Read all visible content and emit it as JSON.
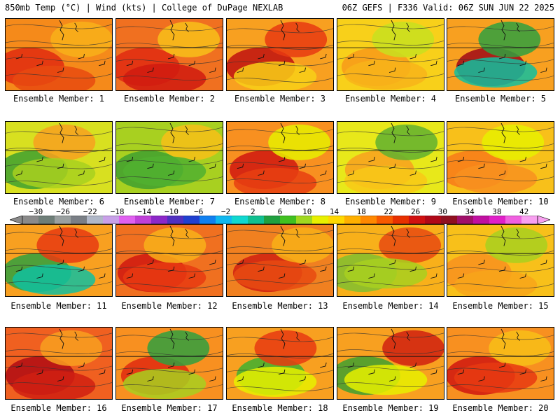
{
  "header": {
    "left": "850mb Temp (°C) | Wind (kts) | College of DuPage NEXLAB",
    "right": "06Z GEFS | F336 Valid: 06Z SUN JUN 22 2025"
  },
  "colorbar": {
    "tick_labels": [
      "−30",
      "−26",
      "−22",
      "−18",
      "−14",
      "−10",
      "−6",
      "−2",
      "2",
      "6",
      "10",
      "14",
      "18",
      "22",
      "26",
      "30",
      "34",
      "38",
      "42"
    ],
    "colors": [
      "#8a8a8a",
      "#6e7e78",
      "#9aa0a0",
      "#7a7f86",
      "#b0b8c8",
      "#c8a0e8",
      "#e060f0",
      "#c040d8",
      "#8c28c8",
      "#5030c0",
      "#2040d0",
      "#1080f0",
      "#10b8f0",
      "#10d8d0",
      "#10c090",
      "#20a040",
      "#40c020",
      "#a0d820",
      "#e8f000",
      "#ffd800",
      "#ffb000",
      "#ff8800",
      "#f85a00",
      "#e83000",
      "#d01010",
      "#b00818",
      "#901020",
      "#a0106a",
      "#c010a0",
      "#e020c8",
      "#f060e0",
      "#f8a0f0"
    ]
  },
  "members": [
    {
      "label": "Ensemble Member: 1",
      "base": "#f58a1a",
      "accents": [
        "#e02a10",
        "#f8b01a",
        "#e84a10"
      ]
    },
    {
      "label": "Ensemble Member: 2",
      "base": "#f07020",
      "accents": [
        "#e02a12",
        "#f8c01a",
        "#d01a10"
      ]
    },
    {
      "label": "Ensemble Member: 3",
      "base": "#f8a020",
      "accents": [
        "#c01010",
        "#e83a12",
        "#f8d018"
      ]
    },
    {
      "label": "Ensemble Member: 4",
      "base": "#f8d01a",
      "accents": [
        "#f89a1a",
        "#c8e020",
        "#f8b41a"
      ]
    },
    {
      "label": "Ensemble Member: 5",
      "base": "#f8a020",
      "accents": [
        "#a00818",
        "#30a040",
        "#10c0a0"
      ]
    },
    {
      "label": "Ensemble Member: 6",
      "base": "#d8e020",
      "accents": [
        "#40a030",
        "#f8a020",
        "#a8d020"
      ]
    },
    {
      "label": "Ensemble Member: 7",
      "base": "#a8d020",
      "accents": [
        "#40a030",
        "#f8c018",
        "#50b030"
      ]
    },
    {
      "label": "Ensemble Member: 8",
      "base": "#f89020",
      "accents": [
        "#d01810",
        "#e8f000",
        "#e84012"
      ]
    },
    {
      "label": "Ensemble Member: 9",
      "base": "#e8e81a",
      "accents": [
        "#f8a020",
        "#60b030",
        "#f8c818"
      ]
    },
    {
      "label": "Ensemble Member: 10",
      "base": "#f8c01a",
      "accents": [
        "#f87a1a",
        "#e8f000",
        "#f89020"
      ]
    },
    {
      "label": "Ensemble Member: 11",
      "base": "#f8a020",
      "accents": [
        "#30a040",
        "#e83a12",
        "#10c0a0"
      ]
    },
    {
      "label": "Ensemble Member: 12",
      "base": "#f07020",
      "accents": [
        "#d01810",
        "#f8b01a",
        "#e83a12"
      ]
    },
    {
      "label": "Ensemble Member: 13",
      "base": "#f08020",
      "accents": [
        "#d02010",
        "#f8b018",
        "#e84a12"
      ]
    },
    {
      "label": "Ensemble Member: 14",
      "base": "#f8b01a",
      "accents": [
        "#80c030",
        "#e84a12",
        "#a8d020"
      ]
    },
    {
      "label": "Ensemble Member: 15",
      "base": "#f8c01a",
      "accents": [
        "#f89020",
        "#a8d020",
        "#f8a41a"
      ]
    },
    {
      "label": "Ensemble Member: 16",
      "base": "#f06020",
      "accents": [
        "#b00c14",
        "#f8a020",
        "#d02012"
      ]
    },
    {
      "label": "Ensemble Member: 17",
      "base": "#f89020",
      "accents": [
        "#e02a10",
        "#30a040",
        "#a8d020"
      ]
    },
    {
      "label": "Ensemble Member: 18",
      "base": "#f8a020",
      "accents": [
        "#40b030",
        "#e83a12",
        "#e8f000"
      ]
    },
    {
      "label": "Ensemble Member: 19",
      "base": "#f8a020",
      "accents": [
        "#40a030",
        "#d02010",
        "#e8f000"
      ]
    },
    {
      "label": "Ensemble Member: 20",
      "base": "#f89020",
      "accents": [
        "#d01810",
        "#f8c018",
        "#e83a12"
      ]
    }
  ]
}
